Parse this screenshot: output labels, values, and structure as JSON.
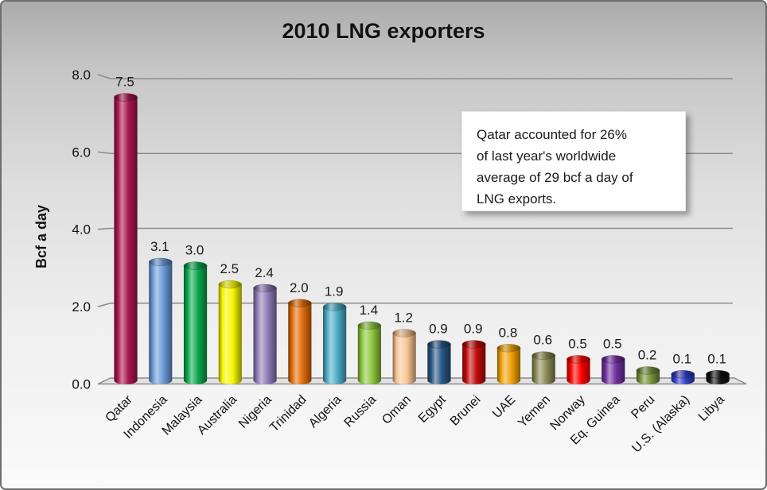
{
  "title": "2010 LNG exporters",
  "chart_data": {
    "type": "bar",
    "style": "3d-cylinder",
    "title": "2010 LNG exporters",
    "xlabel": "",
    "ylabel": "Bcf a day",
    "ylim": [
      0,
      8
    ],
    "ytick_labels": [
      "0.0",
      "2.0",
      "4.0",
      "6.0",
      "8.0"
    ],
    "ytick_values": [
      0,
      2,
      4,
      6,
      8
    ],
    "grid": true,
    "legend": false,
    "categories": [
      "Qatar",
      "Indonesia",
      "Malaysia",
      "Australia",
      "Nigeria",
      "Trinidad",
      "Algeria",
      "Russia",
      "Oman",
      "Egypt",
      "Brunei",
      "UAE",
      "Yemen",
      "Norway",
      "Eq. Guinea",
      "Peru",
      "U.S. (Alaska)",
      "Libya"
    ],
    "values": [
      7.5,
      3.1,
      3.0,
      2.5,
      2.4,
      2.0,
      1.9,
      1.4,
      1.2,
      0.9,
      0.9,
      0.8,
      0.6,
      0.5,
      0.5,
      0.2,
      0.1,
      0.1
    ],
    "value_labels": [
      "7.5",
      "3.1",
      "3.0",
      "2.5",
      "2.4",
      "2.0",
      "1.9",
      "1.4",
      "1.2",
      "0.9",
      "0.9",
      "0.8",
      "0.6",
      "0.5",
      "0.5",
      "0.2",
      "0.1",
      "0.1"
    ],
    "bar_colors": [
      "#a8164e",
      "#6b9bd7",
      "#0ca64c",
      "#f6f600",
      "#8e7cb8",
      "#e36c09",
      "#4bacc6",
      "#8cc63e",
      "#f8c494",
      "#2a5784",
      "#c00a0a",
      "#efa006",
      "#8c8a55",
      "#fe0000",
      "#7030a0",
      "#76923c",
      "#3140c4",
      "#111111"
    ],
    "gridline_color": "#8c8c8c",
    "annotation": {
      "text": "Qatar accounted for 26% of last year's worldwide average of 29 bcf a day of LNG exports.",
      "lines": [
        "Qatar accounted for 26%",
        "of last year's worldwide",
        "average of 29 bcf a day of",
        "LNG exports."
      ]
    }
  }
}
